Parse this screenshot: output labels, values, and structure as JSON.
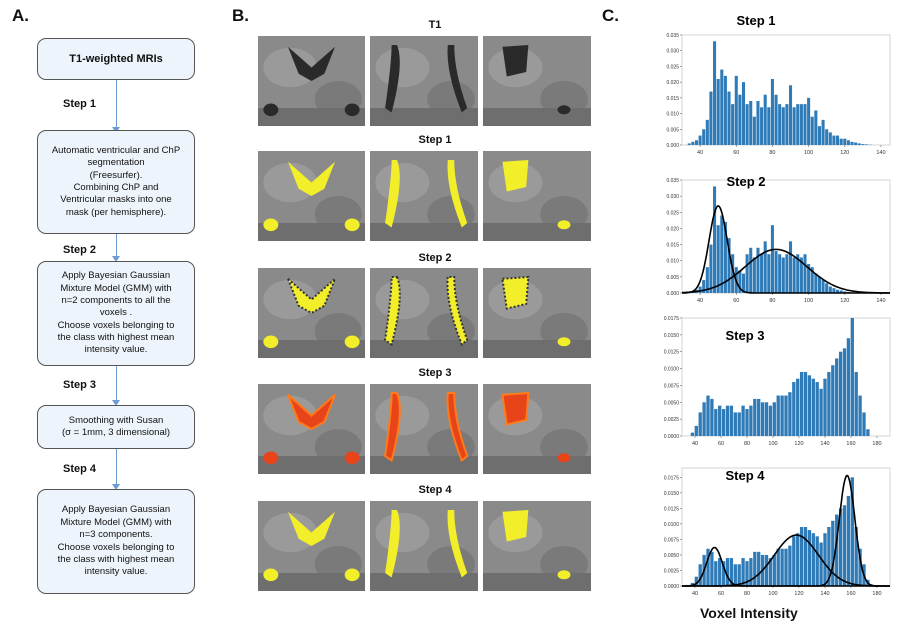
{
  "panel_a": {
    "letter": "A.",
    "boxes": [
      {
        "text": "T1-weighted MRIs"
      },
      {
        "text": "Automatic ventricular and ChP\nsegmentation\n(Freesurfer).\nCombining ChP and\nVentricular masks into one\nmask (per hemisphere)."
      },
      {
        "text": "Apply Bayesian Gaussian\nMixture Model (GMM) with\nn=2 components to all the\nvoxels .\nChoose voxels belonging to\nthe class with highest mean\nintensity value."
      },
      {
        "text": "Smoothing with Susan\n(σ = 1mm, 3 dimensional)"
      },
      {
        "text": "Apply Bayesian Gaussian\nMixture Model (GMM) with\nn=3 components.\nChoose voxels belonging to\nthe class with highest mean\nintensity value."
      }
    ],
    "steps": [
      "Step 1",
      "Step 2",
      "Step 3",
      "Step 4"
    ]
  },
  "panel_b": {
    "letter": "B.",
    "rows": [
      "T1",
      "Step 1",
      "Step 2",
      "Step 3",
      "Step 4"
    ],
    "overlay_colors": [
      "none",
      "#f2ee2a",
      "#f2ee2a",
      "#e8441a",
      "#f2ee2a"
    ]
  },
  "panel_c": {
    "letter": "C.",
    "xlabel": "Voxel Intensity",
    "bar_color": "#2f7bb8"
  },
  "chart_data": [
    {
      "type": "bar",
      "title": "Step 1",
      "xlim": [
        30,
        145
      ],
      "ylim": [
        0,
        0.035
      ],
      "xticks": [
        40,
        60,
        80,
        100,
        120,
        140
      ],
      "yticks": [
        "0.000",
        "0.005",
        "0.010",
        "0.015",
        "0.020",
        "0.025",
        "0.030",
        "0.035"
      ],
      "x": [
        34,
        36,
        38,
        40,
        42,
        44,
        46,
        48,
        50,
        52,
        54,
        56,
        58,
        60,
        62,
        64,
        66,
        68,
        70,
        72,
        74,
        76,
        78,
        80,
        82,
        84,
        86,
        88,
        90,
        92,
        94,
        96,
        98,
        100,
        102,
        104,
        106,
        108,
        110,
        112,
        114,
        116,
        118,
        120,
        122,
        124,
        126,
        128,
        130,
        132,
        134
      ],
      "values": [
        0.0005,
        0.001,
        0.0015,
        0.003,
        0.005,
        0.008,
        0.017,
        0.033,
        0.021,
        0.024,
        0.022,
        0.017,
        0.013,
        0.022,
        0.016,
        0.02,
        0.013,
        0.014,
        0.009,
        0.014,
        0.012,
        0.016,
        0.012,
        0.021,
        0.016,
        0.013,
        0.012,
        0.013,
        0.019,
        0.012,
        0.013,
        0.013,
        0.013,
        0.015,
        0.009,
        0.011,
        0.006,
        0.008,
        0.005,
        0.004,
        0.003,
        0.003,
        0.002,
        0.002,
        0.0015,
        0.001,
        0.0008,
        0.0005,
        0.0003,
        0.0002,
        0.0001
      ],
      "curves": []
    },
    {
      "type": "bar",
      "title": "Step 2",
      "xlim": [
        30,
        145
      ],
      "ylim": [
        0,
        0.035
      ],
      "xticks": [
        40,
        60,
        80,
        100,
        120,
        140
      ],
      "yticks": [
        "0.000",
        "0.005",
        "0.010",
        "0.015",
        "0.020",
        "0.025",
        "0.030",
        "0.035"
      ],
      "x": [
        36,
        38,
        40,
        42,
        44,
        46,
        48,
        50,
        52,
        54,
        56,
        58,
        60,
        62,
        64,
        66,
        68,
        70,
        72,
        74,
        76,
        78,
        80,
        82,
        84,
        86,
        88,
        90,
        92,
        94,
        96,
        98,
        100,
        102,
        104,
        106,
        108,
        110,
        112,
        114,
        116,
        118,
        120,
        122,
        124
      ],
      "values": [
        0.0005,
        0.001,
        0.002,
        0.004,
        0.008,
        0.015,
        0.033,
        0.021,
        0.024,
        0.022,
        0.017,
        0.012,
        0.008,
        0.007,
        0.006,
        0.012,
        0.014,
        0.011,
        0.014,
        0.012,
        0.016,
        0.012,
        0.021,
        0.013,
        0.012,
        0.011,
        0.012,
        0.016,
        0.011,
        0.012,
        0.011,
        0.012,
        0.009,
        0.008,
        0.006,
        0.005,
        0.004,
        0.003,
        0.002,
        0.0015,
        0.001,
        0.0008,
        0.0005,
        0.0003,
        0.0002
      ],
      "curves": [
        {
          "mean": 50,
          "sd": 5,
          "peak": 0.027
        },
        {
          "mean": 82,
          "sd": 17,
          "peak": 0.0135
        }
      ]
    },
    {
      "type": "bar",
      "title": "Step 3",
      "xlim": [
        30,
        190
      ],
      "ylim": [
        0,
        0.0175
      ],
      "xticks": [
        40,
        60,
        80,
        100,
        120,
        140,
        160,
        180
      ],
      "yticks": [
        "0.0000",
        "0.0025",
        "0.0050",
        "0.0075",
        "0.0100",
        "0.0125",
        "0.0150",
        "0.0175"
      ],
      "x": [
        38,
        41,
        44,
        47,
        50,
        53,
        56,
        59,
        62,
        65,
        68,
        71,
        74,
        77,
        80,
        83,
        86,
        89,
        92,
        95,
        98,
        101,
        104,
        107,
        110,
        113,
        116,
        119,
        122,
        125,
        128,
        131,
        134,
        137,
        140,
        143,
        146,
        149,
        152,
        155,
        158,
        161,
        164,
        167,
        170,
        173
      ],
      "values": [
        0.0005,
        0.0015,
        0.0035,
        0.005,
        0.006,
        0.0055,
        0.004,
        0.0045,
        0.004,
        0.0045,
        0.0045,
        0.0035,
        0.0035,
        0.0045,
        0.004,
        0.0045,
        0.0055,
        0.0055,
        0.005,
        0.005,
        0.0045,
        0.005,
        0.006,
        0.006,
        0.006,
        0.0065,
        0.008,
        0.0085,
        0.0095,
        0.0095,
        0.009,
        0.0085,
        0.008,
        0.007,
        0.0085,
        0.0095,
        0.0105,
        0.0115,
        0.0125,
        0.013,
        0.0145,
        0.0175,
        0.0095,
        0.006,
        0.0035,
        0.001
      ],
      "curves": []
    },
    {
      "type": "bar",
      "title": "Step 4",
      "xlim": [
        30,
        190
      ],
      "ylim": [
        0,
        0.019
      ],
      "xticks": [
        40,
        60,
        80,
        100,
        120,
        140,
        160,
        180
      ],
      "yticks": [
        "0.0000",
        "0.0025",
        "0.0050",
        "0.0075",
        "0.0100",
        "0.0125",
        "0.0150",
        "0.0175"
      ],
      "x": [
        38,
        41,
        44,
        47,
        50,
        53,
        56,
        59,
        62,
        65,
        68,
        71,
        74,
        77,
        80,
        83,
        86,
        89,
        92,
        95,
        98,
        101,
        104,
        107,
        110,
        113,
        116,
        119,
        122,
        125,
        128,
        131,
        134,
        137,
        140,
        143,
        146,
        149,
        152,
        155,
        158,
        161,
        164,
        167,
        170,
        173
      ],
      "values": [
        0.0005,
        0.0015,
        0.0035,
        0.005,
        0.006,
        0.0055,
        0.004,
        0.0045,
        0.004,
        0.0045,
        0.0045,
        0.0035,
        0.0035,
        0.0045,
        0.004,
        0.0045,
        0.0055,
        0.0055,
        0.005,
        0.005,
        0.0045,
        0.005,
        0.006,
        0.006,
        0.006,
        0.0065,
        0.008,
        0.0085,
        0.0095,
        0.0095,
        0.009,
        0.0085,
        0.008,
        0.007,
        0.0085,
        0.0095,
        0.0105,
        0.0115,
        0.0125,
        0.013,
        0.0145,
        0.0175,
        0.0095,
        0.006,
        0.0035,
        0.001
      ],
      "curves": [
        {
          "mean": 55,
          "sd": 6,
          "peak": 0.0062
        },
        {
          "mean": 118,
          "sd": 17,
          "peak": 0.0082
        },
        {
          "mean": 157,
          "sd": 6,
          "peak": 0.0178
        }
      ]
    }
  ]
}
